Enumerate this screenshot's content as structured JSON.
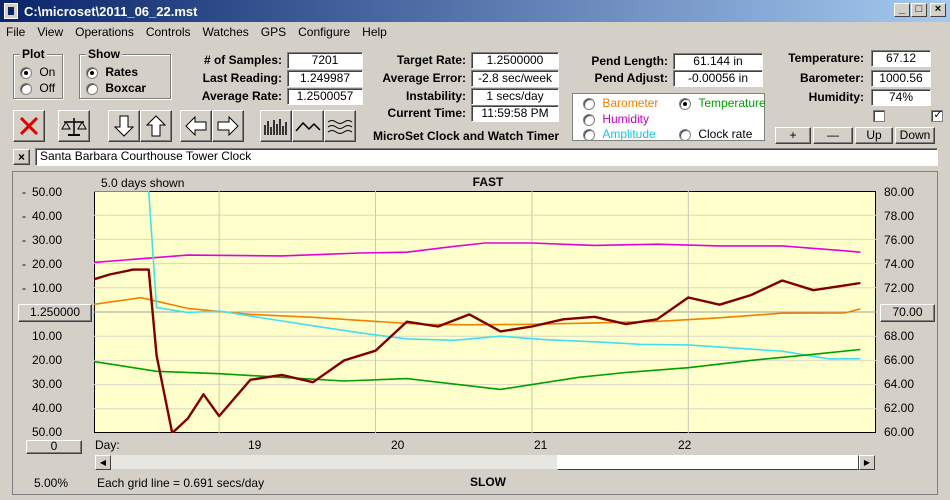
{
  "window": {
    "title": "C:\\microset\\2011_06_22.mst"
  },
  "menu": [
    "File",
    "View",
    "Operations",
    "Controls",
    "Watches",
    "GPS",
    "Configure",
    "Help"
  ],
  "plot_group": {
    "title": "Plot",
    "on": "On",
    "off": "Off",
    "selected": "On"
  },
  "show_group": {
    "title": "Show",
    "rates": "Rates",
    "boxcar": "Boxcar",
    "selected": "Rates"
  },
  "stats": {
    "samples_label": "# of Samples:",
    "samples": "7201",
    "last_label": "Last Reading:",
    "last": "1.249987",
    "avg_label": "Average Rate:",
    "avg": "1.2500057"
  },
  "targets": {
    "target_label": "Target Rate:",
    "target": "1.2500000",
    "error_label": "Average Error:",
    "error": "-2.8 sec/week",
    "instab_label": "Instability:",
    "instab": "1 secs/day",
    "time_label": "Current Time:",
    "time": "11:59:58 PM",
    "app_title": "MicroSet Clock and Watch Timer"
  },
  "pendulum": {
    "length_label": "Pend Length:",
    "length": "61.144 in",
    "adjust_label": "Pend Adjust:",
    "adjust": "-0.00056 in"
  },
  "secondary": {
    "barometer": "Barometer",
    "temperature": "Temperature",
    "humidity": "Humidity",
    "amplitude": "Amplitude",
    "clockrate": "Clock rate",
    "selected": "Temperature"
  },
  "env": {
    "temp_label": "Temperature:",
    "temp": "67.12",
    "baro_label": "Barometer:",
    "baro": "1000.56",
    "hum_label": "Humidity:",
    "hum": "74%"
  },
  "env_buttons": {
    "plus": "+",
    "minus": "—",
    "up": "Up",
    "down": "Down"
  },
  "description": "Santa Barbara Courthouse Tower Clock",
  "chart_panel": {
    "days_shown": "5.0 days shown",
    "fast": "FAST",
    "slow": "SLOW",
    "center_rate": "1.250000",
    "center_temp": "70.00",
    "zero_box": "0",
    "zoom": "5.00%",
    "grid_note": "Each grid line = 0.691 secs/day",
    "day_label": "Day:"
  },
  "colors": {
    "rate": "#800000",
    "temperature": "#00a000",
    "humidity": "#e000e0",
    "amplitude": "#40e0f0",
    "barometer": "#f08000",
    "plot_bg": "#ffffcc"
  },
  "chart_data": {
    "type": "line",
    "title": "",
    "x_axis": {
      "label": "Day:",
      "ticks": [
        "19",
        "20",
        "21",
        "22"
      ],
      "range_days": [
        18.2,
        23.2
      ]
    },
    "left_axis": {
      "labels_top": [
        "50.00",
        "40.00",
        "30.00",
        "20.00",
        "10.00"
      ],
      "labels_bottom": [
        "10.00",
        "20.00",
        "30.00",
        "40.00",
        "50.00"
      ],
      "center": "1.250000",
      "range": [
        -50,
        50
      ]
    },
    "right_axis": {
      "labels": [
        "80.00",
        "78.00",
        "76.00",
        "74.00",
        "72.00",
        "70.00",
        "68.00",
        "66.00",
        "64.00",
        "62.00",
        "60.00"
      ],
      "range": [
        60,
        80
      ]
    },
    "series": [
      {
        "key": "humidity",
        "axis": "left",
        "x": [
          18.2,
          18.8,
          19.4,
          19.9,
          20.2,
          20.5,
          20.7,
          21.0,
          21.4,
          21.8,
          22.2,
          22.6,
          23.0,
          23.1
        ],
        "values": [
          20.5,
          23.5,
          23.2,
          24.4,
          24.7,
          27.1,
          28.5,
          28.5,
          27.5,
          28.0,
          27.3,
          27.3,
          25.3,
          24.7
        ]
      },
      {
        "key": "barometer",
        "axis": "left",
        "x": [
          18.2,
          18.5,
          18.8,
          19.2,
          19.6,
          20.0,
          20.3,
          20.6,
          21.0,
          21.4,
          21.8,
          22.2,
          22.6,
          23.0,
          23.1
        ],
        "values": [
          3.2,
          5.9,
          1.5,
          -1.0,
          -2.2,
          -3.9,
          -5.1,
          -5.3,
          -5.1,
          -4.5,
          -3.9,
          -2.4,
          -0.5,
          -0.4,
          1.3
        ]
      },
      {
        "key": "amplitude",
        "axis": "left",
        "x": [
          18.2,
          18.4,
          18.55,
          18.6,
          18.8,
          19.0,
          19.3,
          19.6,
          19.9,
          20.2,
          20.5,
          20.8,
          21.1,
          21.4,
          21.7,
          22.0,
          22.3,
          22.6,
          22.9,
          23.1
        ],
        "values": [
          50.0,
          50.0,
          50.0,
          1.8,
          -0.2,
          0.4,
          -2.7,
          -5.7,
          -8.6,
          -11.1,
          -11.7,
          -10.0,
          -11.5,
          -12.3,
          -13.4,
          -13.6,
          -14.9,
          -16.2,
          -19.4,
          -19.3
        ]
      },
      {
        "key": "temperature",
        "axis": "right",
        "x": [
          18.2,
          18.6,
          19.0,
          19.4,
          19.8,
          20.2,
          20.6,
          20.8,
          21.0,
          21.3,
          21.6,
          22.0,
          22.4,
          22.8,
          23.1
        ],
        "values": [
          65.9,
          65.1,
          64.9,
          64.6,
          64.3,
          64.5,
          63.9,
          63.6,
          64.0,
          64.6,
          65.0,
          65.4,
          66.0,
          66.5,
          66.9
        ]
      },
      {
        "key": "rate",
        "axis": "left",
        "x": [
          18.2,
          18.3,
          18.45,
          18.55,
          18.6,
          18.7,
          18.8,
          18.9,
          19.0,
          19.2,
          19.4,
          19.6,
          19.8,
          20.0,
          20.2,
          20.4,
          20.6,
          20.8,
          21.0,
          21.2,
          21.4,
          21.6,
          21.8,
          22.0,
          22.2,
          22.4,
          22.6,
          22.8,
          23.0,
          23.1
        ],
        "values": [
          13.5,
          15.5,
          17.5,
          17.5,
          -18.0,
          -50.0,
          -44.0,
          -34.0,
          -43.0,
          -28.0,
          -26.0,
          -29.0,
          -20.0,
          -16.0,
          -4.0,
          -6.0,
          -1.0,
          -8.0,
          -6.0,
          -3.0,
          -2.0,
          -5.0,
          -3.0,
          6.0,
          3.0,
          7.0,
          13.0,
          9.0,
          11.0,
          12.0
        ]
      }
    ]
  }
}
